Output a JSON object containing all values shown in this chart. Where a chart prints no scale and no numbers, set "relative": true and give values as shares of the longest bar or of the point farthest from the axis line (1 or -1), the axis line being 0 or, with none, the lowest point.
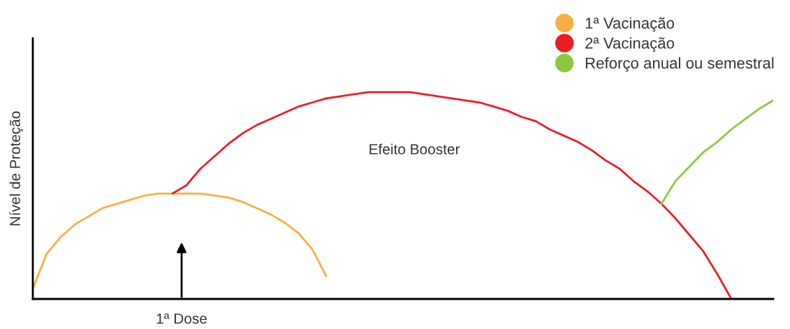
{
  "chart_data": {
    "type": "line",
    "relative": true,
    "ylabel": "Nível de Proteção",
    "legend": "top right",
    "marker": "none",
    "line_style": "solid",
    "grid": false,
    "categories": [
      null,
      null,
      null,
      null,
      null,
      null,
      null,
      null,
      null,
      null,
      null,
      null,
      null,
      null,
      null,
      null,
      null,
      null,
      null,
      null,
      null,
      null,
      null,
      null,
      null,
      null,
      null,
      null,
      null,
      null,
      null,
      null,
      null,
      null,
      null,
      null,
      null,
      null,
      null,
      null,
      null,
      null,
      null,
      null,
      null,
      null,
      null,
      null,
      null,
      null,
      null,
      null,
      null,
      null
    ],
    "series": [
      {
        "name": "1ª Vacinação",
        "color": "#f9ae42",
        "values": [
          0.05,
          0.22,
          0.3,
          0.36,
          0.4,
          0.44,
          0.46,
          0.48,
          0.5,
          0.51,
          0.51,
          0.51,
          0.51,
          0.5,
          0.49,
          0.47,
          0.44,
          0.41,
          0.37,
          0.32,
          0.24,
          0.11,
          null,
          null,
          null,
          null,
          null,
          null,
          null,
          null,
          null,
          null,
          null,
          null,
          null,
          null,
          null,
          null,
          null,
          null,
          null,
          null,
          null,
          null,
          null,
          null,
          null,
          null,
          null,
          null,
          null,
          null,
          null,
          null
        ]
      },
      {
        "name": "2ª Vacinação",
        "color": "#ec1c24",
        "values": [
          null,
          null,
          null,
          null,
          null,
          null,
          null,
          null,
          null,
          null,
          0.51,
          0.55,
          0.63,
          0.69,
          0.75,
          0.8,
          0.84,
          0.87,
          0.9,
          0.93,
          0.95,
          0.97,
          0.98,
          0.99,
          1.0,
          1.0,
          1.0,
          1.0,
          0.99,
          0.98,
          0.97,
          0.96,
          0.95,
          0.93,
          0.91,
          0.88,
          0.86,
          0.82,
          0.79,
          0.76,
          0.72,
          0.67,
          0.63,
          0.57,
          0.52,
          0.46,
          0.39,
          0.31,
          0.23,
          0.12,
          0.0,
          null,
          null,
          null
        ]
      },
      {
        "name": "Reforço anual ou semestral",
        "color": "#8dc63f",
        "values": [
          null,
          null,
          null,
          null,
          null,
          null,
          null,
          null,
          null,
          null,
          null,
          null,
          null,
          null,
          null,
          null,
          null,
          null,
          null,
          null,
          null,
          null,
          null,
          null,
          null,
          null,
          null,
          null,
          null,
          null,
          null,
          null,
          null,
          null,
          null,
          null,
          null,
          null,
          null,
          null,
          null,
          null,
          null,
          null,
          null,
          0.46,
          0.57,
          0.64,
          0.71,
          0.76,
          0.82,
          0.87,
          0.92,
          0.96
        ]
      }
    ],
    "annotations": [
      "Efeito Booster",
      "1ª Dose"
    ]
  }
}
